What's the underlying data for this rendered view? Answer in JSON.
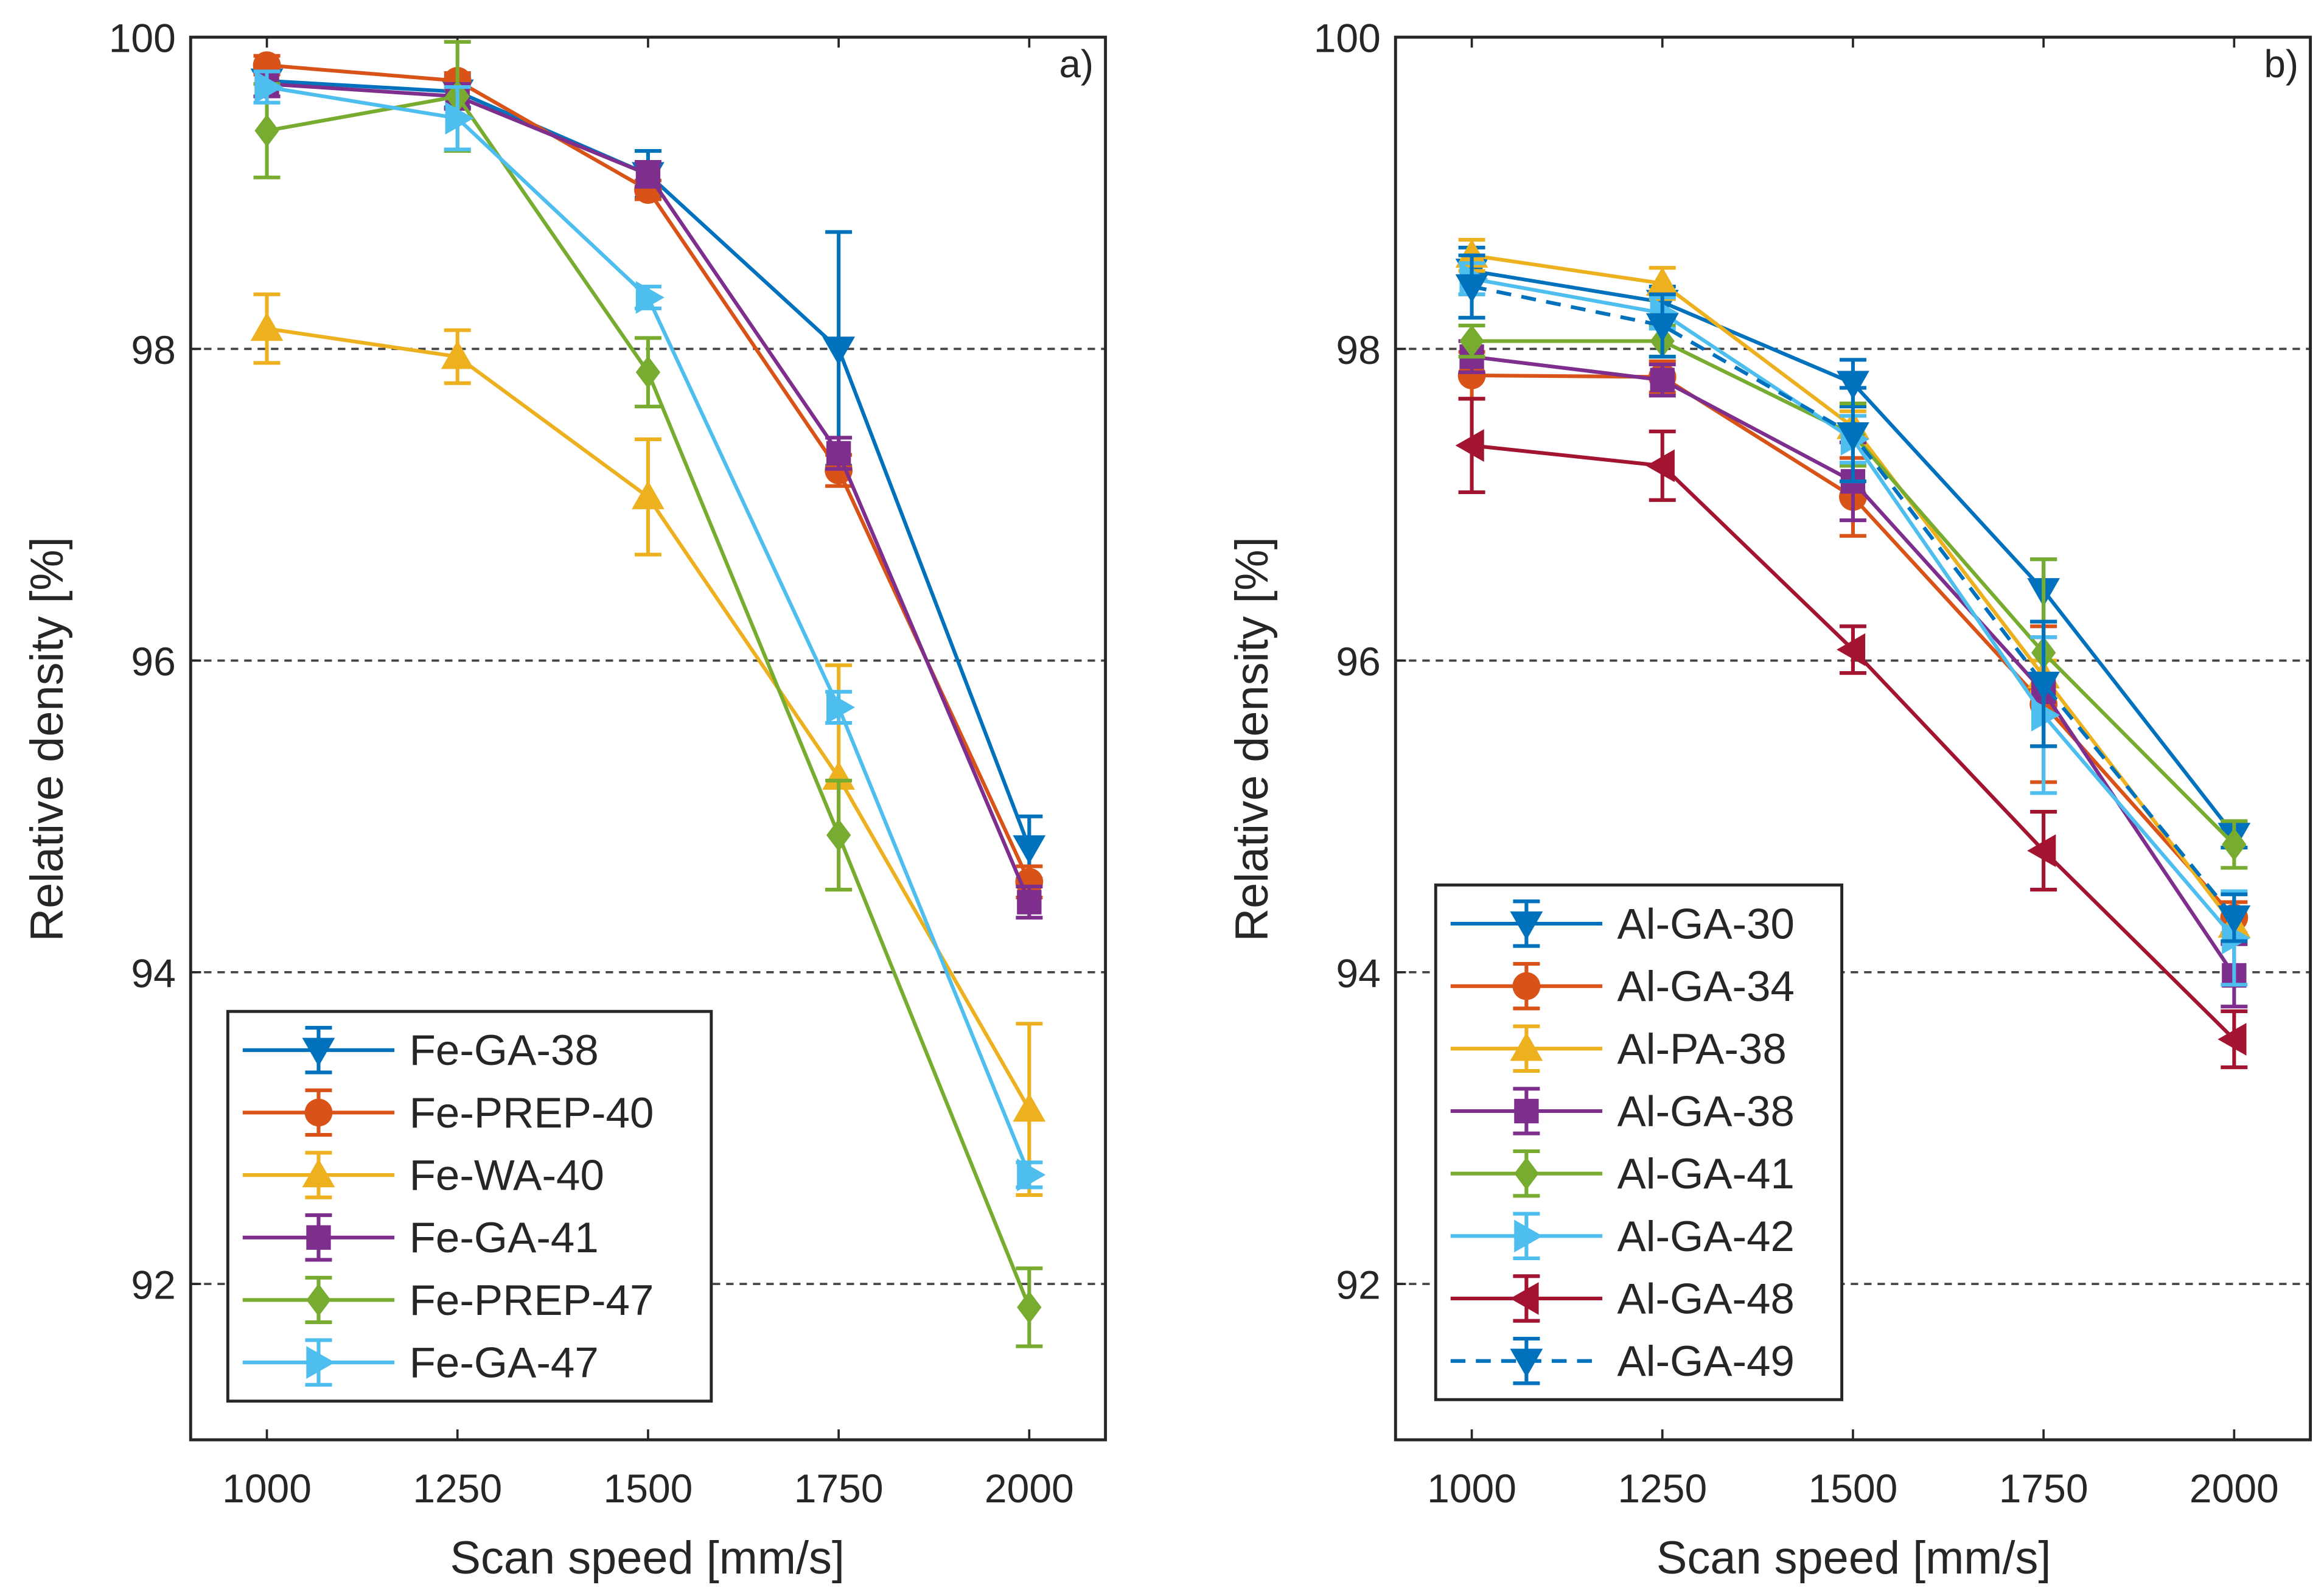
{
  "chart_data": [
    {
      "type": "line",
      "panel_label": "a)",
      "xlabel": "Scan speed [mm/s]",
      "ylabel": "Relative density [%]",
      "xlim": [
        900,
        2100
      ],
      "ylim": [
        91,
        100
      ],
      "x": [
        1000,
        1250,
        1500,
        1750,
        2000
      ],
      "xticks": [
        "1000",
        "1250",
        "1500",
        "1750",
        "2000"
      ],
      "yticks": [
        92,
        94,
        96,
        98,
        100
      ],
      "ytick_labels": [
        "92",
        "94",
        "96",
        "98",
        "100"
      ],
      "grid": "horizontal dashed at y ticks",
      "legend_position": "bottom-left",
      "series": [
        {
          "name": "Fe-GA-38",
          "color": "#0072BD",
          "marker": "triangle-down",
          "dash": false,
          "values": [
            99.72,
            99.65,
            99.12,
            98.0,
            94.8
          ],
          "errors": [
            0.1,
            0.1,
            0.15,
            0.75,
            0.2
          ]
        },
        {
          "name": "Fe-PREP-40",
          "color": "#D95319",
          "marker": "circle",
          "dash": false,
          "values": [
            99.82,
            99.72,
            99.02,
            97.22,
            94.58
          ],
          "errors": [
            0.06,
            0.05,
            0.06,
            0.1,
            0.1
          ]
        },
        {
          "name": "Fe-WA-40",
          "color": "#EDB120",
          "marker": "triangle-up",
          "dash": false,
          "values": [
            98.13,
            97.95,
            97.05,
            95.25,
            93.12
          ],
          "errors": [
            0.22,
            0.17,
            0.37,
            0.72,
            0.55
          ]
        },
        {
          "name": "Fe-GA-41",
          "color": "#7E2F8E",
          "marker": "square",
          "dash": false,
          "values": [
            99.7,
            99.62,
            99.12,
            97.33,
            94.45
          ],
          "errors": [
            0.08,
            0.08,
            0.08,
            0.1,
            0.1
          ]
        },
        {
          "name": "Fe-PREP-47",
          "color": "#77AC30",
          "marker": "diamond",
          "dash": false,
          "values": [
            99.4,
            99.62,
            97.85,
            94.88,
            91.85
          ],
          "errors": [
            0.3,
            0.35,
            0.22,
            0.35,
            0.25
          ]
        },
        {
          "name": "Fe-GA-47",
          "color": "#4DBEEE",
          "marker": "triangle-right",
          "dash": false,
          "values": [
            99.68,
            99.48,
            98.33,
            95.7,
            92.7
          ],
          "errors": [
            0.1,
            0.2,
            0.07,
            0.1,
            0.08
          ]
        }
      ]
    },
    {
      "type": "line",
      "panel_label": "b)",
      "xlabel": "Scan speed [mm/s]",
      "ylabel": "Relative density [%]",
      "xlim": [
        900,
        2100
      ],
      "ylim": [
        91,
        100
      ],
      "x": [
        1000,
        1250,
        1500,
        1750,
        2000
      ],
      "xticks": [
        "1000",
        "1250",
        "1500",
        "1750",
        "2000"
      ],
      "yticks": [
        92,
        94,
        96,
        98,
        100
      ],
      "ytick_labels": [
        "92",
        "94",
        "96",
        "98",
        "100"
      ],
      "grid": "horizontal dashed at y ticks",
      "legend_position": "bottom-left",
      "series": [
        {
          "name": "Al-GA-30",
          "color": "#0072BD",
          "marker": "triangle-down",
          "dash": false,
          "values": [
            98.5,
            98.3,
            97.78,
            96.45,
            94.88
          ],
          "errors": [
            0.15,
            0.1,
            0.15,
            0.2,
            0.08
          ]
        },
        {
          "name": "Al-GA-34",
          "color": "#D95319",
          "marker": "circle",
          "dash": false,
          "values": [
            97.83,
            97.82,
            97.05,
            95.72,
            94.35
          ],
          "errors": [
            0.15,
            0.1,
            0.25,
            0.5,
            0.1
          ]
        },
        {
          "name": "Al-PA-38",
          "color": "#EDB120",
          "marker": "triangle-up",
          "dash": false,
          "values": [
            98.6,
            98.42,
            97.5,
            95.9,
            94.3
          ],
          "errors": [
            0.1,
            0.1,
            0.1,
            0.1,
            0.1
          ]
        },
        {
          "name": "Al-GA-38",
          "color": "#7E2F8E",
          "marker": "square",
          "dash": false,
          "values": [
            97.95,
            97.8,
            97.15,
            95.8,
            93.98
          ],
          "errors": [
            0.1,
            0.1,
            0.25,
            0.35,
            0.2
          ]
        },
        {
          "name": "Al-GA-41",
          "color": "#77AC30",
          "marker": "diamond",
          "dash": false,
          "values": [
            98.05,
            98.05,
            97.45,
            96.05,
            94.82
          ],
          "errors": [
            0.1,
            0.1,
            0.2,
            0.6,
            0.15
          ]
        },
        {
          "name": "Al-GA-42",
          "color": "#4DBEEE",
          "marker": "triangle-right",
          "dash": false,
          "values": [
            98.45,
            98.23,
            97.42,
            95.65,
            94.22
          ],
          "errors": [
            0.1,
            0.1,
            0.15,
            0.5,
            0.3
          ]
        },
        {
          "name": "Al-GA-48",
          "color": "#A2142F",
          "marker": "triangle-left",
          "dash": false,
          "values": [
            97.38,
            97.25,
            96.07,
            94.78,
            93.57
          ],
          "errors": [
            0.3,
            0.22,
            0.15,
            0.25,
            0.18
          ]
        },
        {
          "name": "Al-GA-49",
          "color": "#0072BD",
          "marker": "triangle-down",
          "dash": true,
          "values": [
            98.4,
            98.15,
            97.45,
            95.85,
            94.35
          ],
          "errors": [
            0.2,
            0.2,
            0.3,
            0.4,
            0.15
          ]
        }
      ]
    }
  ]
}
